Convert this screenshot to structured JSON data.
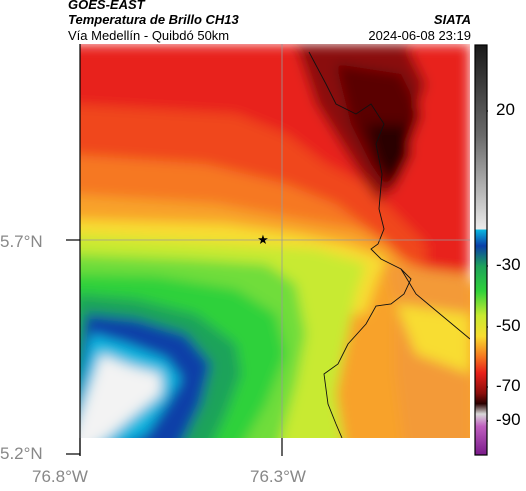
{
  "header": {
    "satellite": "GOES-EAST",
    "product": "Temperatura de Brillo CH13",
    "region": "Vía Medellín - Quibdó 50km",
    "source": "SIATA",
    "datetime": "2024-06-08 23:19"
  },
  "axes": {
    "y_ticks": [
      "5.7°N",
      "5.2°N"
    ],
    "x_ticks": [
      "76.8°W",
      "76.3°W"
    ]
  },
  "colorbar": {
    "tick_labels": [
      "20",
      "-30",
      "-50",
      "-70",
      "-90"
    ],
    "range": [
      -95,
      35
    ]
  },
  "marker": {
    "icon": "star-icon",
    "symbol": "★"
  },
  "colors": {
    "cold_cloud": "#2a0000",
    "warm_surface": "#f2a33c",
    "mid_cloud_green": "#2fd13a",
    "deep_cloud_blue": "#0a3fa8"
  }
}
